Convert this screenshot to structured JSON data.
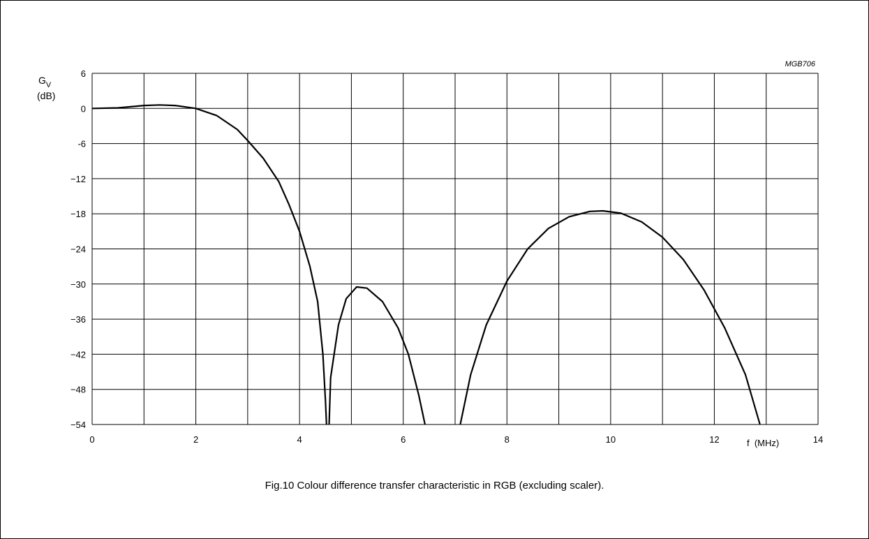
{
  "figure": {
    "code": "MGB706",
    "caption": "Fig.10  Colour difference transfer characteristic in RGB (excluding scaler)."
  },
  "chart_data": {
    "type": "line",
    "ylabel_main": "G",
    "ylabel_sub": "V",
    "ylabel_unit": "(dB)",
    "xlabel": "f  (MHz)",
    "xlim": [
      0,
      14
    ],
    "ylim": [
      -54,
      6
    ],
    "grid": true,
    "x_ticks": [
      {
        "v": 0,
        "label": "0"
      },
      {
        "v": 2,
        "label": "2"
      },
      {
        "v": 4,
        "label": "4"
      },
      {
        "v": 6,
        "label": "6"
      },
      {
        "v": 8,
        "label": "8"
      },
      {
        "v": 10,
        "label": "10"
      },
      {
        "v": 12,
        "label": "12"
      },
      {
        "v": 14,
        "label": "14"
      }
    ],
    "y_ticks": [
      {
        "v": 6,
        "label": "6"
      },
      {
        "v": 0,
        "label": "0"
      },
      {
        "v": -6,
        "label": "-6"
      },
      {
        "v": -12,
        "label": "−12"
      },
      {
        "v": -18,
        "label": "−18"
      },
      {
        "v": -24,
        "label": "−24"
      },
      {
        "v": -30,
        "label": "−30"
      },
      {
        "v": -36,
        "label": "−36"
      },
      {
        "v": -42,
        "label": "−42"
      },
      {
        "v": -48,
        "label": "−48"
      },
      {
        "v": -54,
        "label": "−54"
      }
    ],
    "series": [
      {
        "segments": [
          [
            [
              0,
              0
            ],
            [
              0.5,
              0.1
            ],
            [
              1.0,
              0.5
            ],
            [
              1.3,
              0.6
            ],
            [
              1.6,
              0.5
            ],
            [
              2.0,
              0.0
            ],
            [
              2.4,
              -1.2
            ],
            [
              2.8,
              -3.6
            ],
            [
              3.0,
              -5.5
            ],
            [
              3.3,
              -8.5
            ],
            [
              3.6,
              -12.5
            ],
            [
              3.8,
              -16.5
            ],
            [
              4.0,
              -21.0
            ],
            [
              4.2,
              -27.0
            ],
            [
              4.35,
              -33.0
            ],
            [
              4.45,
              -42.0
            ],
            [
              4.5,
              -50.0
            ],
            [
              4.52,
              -54.0
            ]
          ],
          [
            [
              4.57,
              -54.0
            ],
            [
              4.6,
              -46.0
            ],
            [
              4.75,
              -37.0
            ],
            [
              4.9,
              -32.5
            ],
            [
              5.1,
              -30.5
            ],
            [
              5.3,
              -30.7
            ],
            [
              5.6,
              -33.0
            ],
            [
              5.9,
              -37.5
            ],
            [
              6.1,
              -42.0
            ],
            [
              6.3,
              -49.0
            ],
            [
              6.42,
              -54.0
            ]
          ],
          [
            [
              7.1,
              -54.0
            ],
            [
              7.3,
              -45.5
            ],
            [
              7.6,
              -37.0
            ],
            [
              8.0,
              -29.5
            ],
            [
              8.4,
              -24.0
            ],
            [
              8.8,
              -20.5
            ],
            [
              9.2,
              -18.5
            ],
            [
              9.6,
              -17.6
            ],
            [
              9.85,
              -17.5
            ],
            [
              10.2,
              -17.9
            ],
            [
              10.6,
              -19.4
            ],
            [
              11.0,
              -22.0
            ],
            [
              11.4,
              -25.8
            ],
            [
              11.8,
              -31.0
            ],
            [
              12.2,
              -37.5
            ],
            [
              12.6,
              -45.5
            ],
            [
              12.88,
              -54.0
            ]
          ]
        ]
      }
    ]
  }
}
